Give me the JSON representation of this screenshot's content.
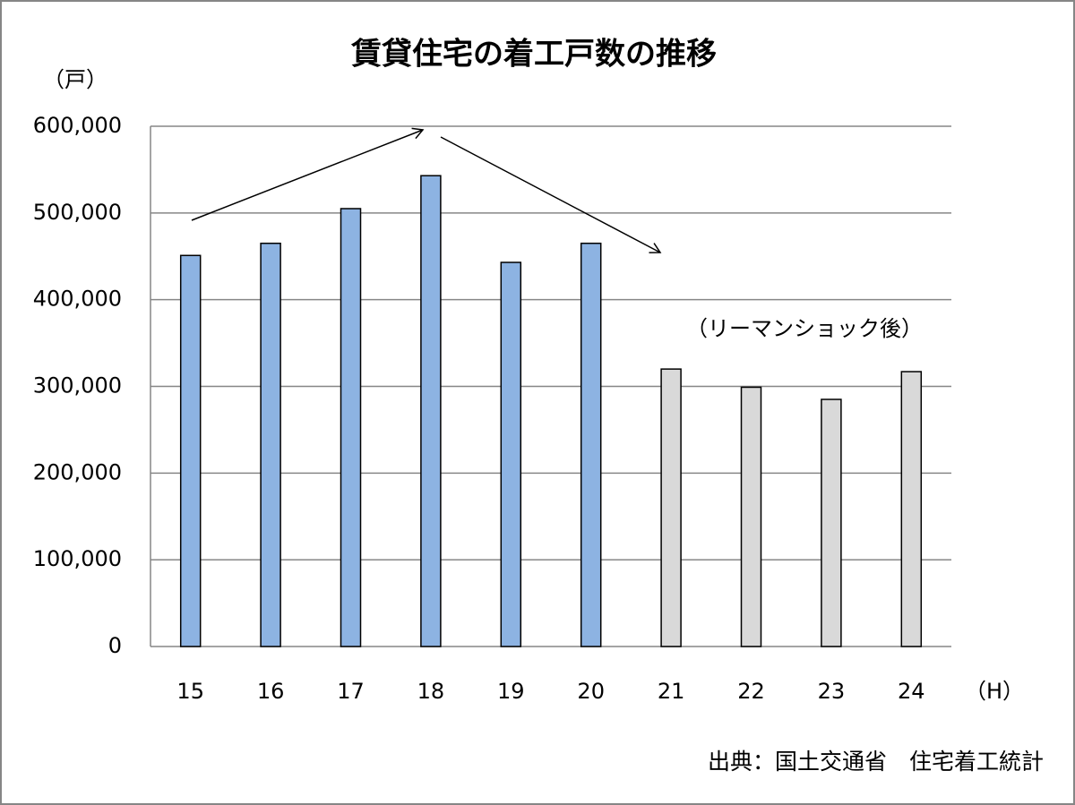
{
  "chart_data": {
    "type": "bar",
    "title": "賃貸住宅の着工戸数の推移",
    "y_unit": "（戸）",
    "x_unit": "（H）",
    "annotation": "（リーマンショック後）",
    "source": "出典：国土交通省　住宅着工統計",
    "categories": [
      "15",
      "16",
      "17",
      "18",
      "19",
      "20",
      "21",
      "22",
      "23",
      "24"
    ],
    "values": [
      451000,
      465000,
      505000,
      543000,
      443000,
      465000,
      320000,
      299000,
      285000,
      317000
    ],
    "colors": [
      "#8db3e2",
      "#8db3e2",
      "#8db3e2",
      "#8db3e2",
      "#8db3e2",
      "#8db3e2",
      "#d9d9d9",
      "#d9d9d9",
      "#d9d9d9",
      "#d9d9d9"
    ],
    "ylim": [
      0,
      600000
    ],
    "yticks": [
      0,
      {
        "value": 100000,
        "label": "100,000"
      },
      {
        "value": 200000,
        "label": "200,000"
      },
      {
        "value": 300000,
        "label": "300,000"
      },
      {
        "value": 400000,
        "label": "400,000"
      },
      {
        "value": 500000,
        "label": "500,000"
      },
      {
        "value": 600000,
        "label": "600,000"
      }
    ],
    "grid": true
  }
}
